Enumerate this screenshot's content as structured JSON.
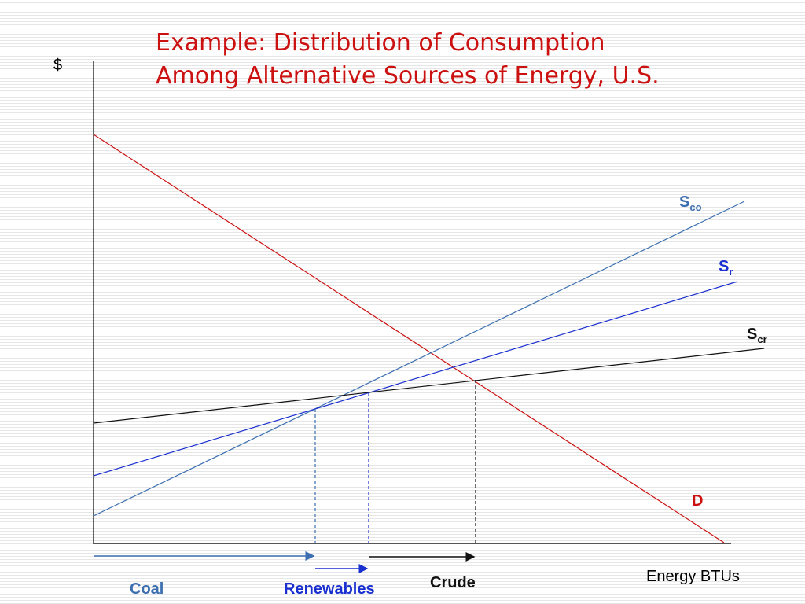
{
  "title": {
    "line1": "Example: Distribution of Consumption",
    "line2": "Among Alternative Sources of Energy, U.S."
  },
  "axes": {
    "y_label": "$",
    "x_label": "Energy BTUs"
  },
  "curves": {
    "demand": {
      "label": "D",
      "color": "#cc1111"
    },
    "coal": {
      "label_main": "S",
      "label_sub": "co",
      "color": "#3b6fb0"
    },
    "renewables": {
      "label_main": "S",
      "label_sub": "r",
      "color": "#1a2fd0"
    },
    "crude": {
      "label_main": "S",
      "label_sub": "cr",
      "color": "#111111"
    }
  },
  "quantity_labels": {
    "coal": {
      "text": "Coal",
      "color": "#3b6fb0"
    },
    "renewables": {
      "text": "Renewables",
      "color": "#1a2fd0"
    },
    "crude": {
      "text": "Crude",
      "color": "#111111"
    }
  }
}
